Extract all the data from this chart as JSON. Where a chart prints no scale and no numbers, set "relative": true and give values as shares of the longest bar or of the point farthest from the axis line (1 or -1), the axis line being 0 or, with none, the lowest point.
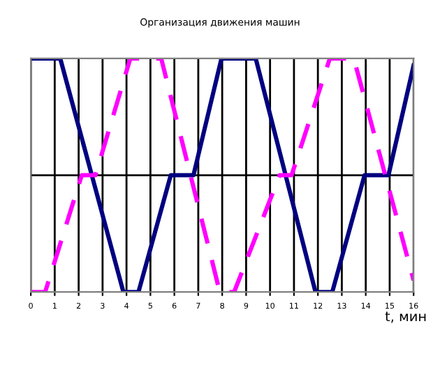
{
  "chart_data": {
    "type": "line",
    "title": "Организация движения машин",
    "xlabel": "t, мин",
    "relative": true,
    "xlim": [
      0,
      16
    ],
    "xticks": [
      0,
      1,
      2,
      3,
      4,
      5,
      6,
      7,
      8,
      9,
      10,
      11,
      12,
      13,
      14,
      15,
      16
    ],
    "grid": "x",
    "legend": false,
    "ref_lines": [
      {
        "axis": "y",
        "value": 0.5,
        "color": "#000000"
      }
    ],
    "series": [
      {
        "color": "#000080",
        "line_style": "solid",
        "x": [
          0,
          1.23,
          3.87,
          4.5,
          5.85,
          6.8,
          7.97,
          9.4,
          11.9,
          12.6,
          13.95,
          14.95,
          16
        ],
        "values": [
          1,
          1,
          0,
          0,
          0.5,
          0.5,
          1,
          1,
          0,
          0,
          0.5,
          0.5,
          0.97
        ]
      },
      {
        "color": "#ff00ff",
        "line_style": "dashed",
        "x": [
          0,
          0.6,
          2.13,
          2.7,
          4.16,
          5.45,
          7.9,
          8.5,
          10.4,
          10.9,
          12.5,
          13.5,
          16
        ],
        "values": [
          0,
          0,
          0.5,
          0.5,
          1,
          1,
          0,
          0,
          0.5,
          0.5,
          1,
          1,
          0.05
        ]
      }
    ]
  }
}
